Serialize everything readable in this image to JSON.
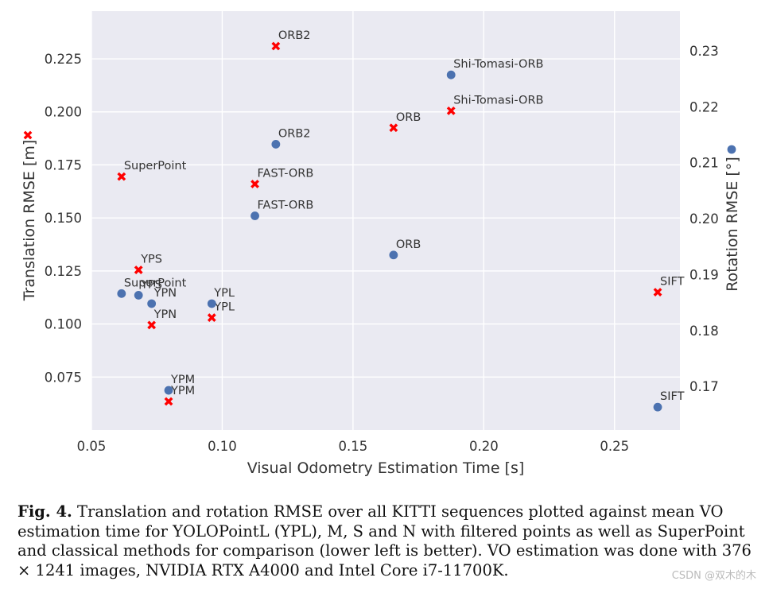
{
  "chart_data": {
    "type": "scatter",
    "xlabel": "Visual Odometry Estimation Time [s]",
    "ylabel_left": "Translation RMSE [m]",
    "ylabel_right": "Rotation RMSE [°]",
    "xlim": [
      0.05,
      0.275
    ],
    "ylim_left": [
      0.05,
      0.2475
    ],
    "ylim_right": [
      0.1622,
      0.2371
    ],
    "xticks": [
      0.05,
      0.1,
      0.15,
      0.2,
      0.25
    ],
    "xtick_labels": [
      "0.05",
      "0.10",
      "0.15",
      "0.20",
      "0.25"
    ],
    "yticks_left": [
      0.075,
      0.1,
      0.125,
      0.15,
      0.175,
      0.2,
      0.225
    ],
    "ytick_labels_left": [
      "0.075",
      "0.100",
      "0.125",
      "0.150",
      "0.175",
      "0.200",
      "0.225"
    ],
    "yticks_right": [
      0.17,
      0.18,
      0.19,
      0.2,
      0.21,
      0.22,
      0.23
    ],
    "ytick_labels_right": [
      "0.17",
      "0.18",
      "0.19",
      "0.20",
      "0.21",
      "0.22",
      "0.23"
    ],
    "grid": true,
    "legend_markers": {
      "left_axis": "red-x",
      "right_axis": "blue-dot"
    },
    "series": [
      {
        "name": "Translation RMSE",
        "axis": "left",
        "marker": "x",
        "color": "#ff0000",
        "points": [
          {
            "label": "ORB2",
            "x": 0.1205,
            "y": 0.231
          },
          {
            "label": "Shi-Tomasi-ORB",
            "x": 0.1875,
            "y": 0.2005
          },
          {
            "label": "ORB",
            "x": 0.1655,
            "y": 0.1925
          },
          {
            "label": "SuperPoint",
            "x": 0.0615,
            "y": 0.1695
          },
          {
            "label": "FAST-ORB",
            "x": 0.1125,
            "y": 0.166
          },
          {
            "label": "YPS",
            "x": 0.068,
            "y": 0.1255
          },
          {
            "label": "SIFT",
            "x": 0.2665,
            "y": 0.115
          },
          {
            "label": "YPL",
            "x": 0.096,
            "y": 0.103
          },
          {
            "label": "YPN",
            "x": 0.073,
            "y": 0.0995
          },
          {
            "label": "YPM",
            "x": 0.0795,
            "y": 0.0635
          }
        ]
      },
      {
        "name": "Rotation RMSE",
        "axis": "right",
        "marker": "circle",
        "color": "#4c72b0",
        "points": [
          {
            "label": "Shi-Tomasi-ORB",
            "x": 0.1875,
            "y": 0.2257
          },
          {
            "label": "ORB2",
            "x": 0.1205,
            "y": 0.2133
          },
          {
            "label": "FAST-ORB",
            "x": 0.1125,
            "y": 0.2005
          },
          {
            "label": "ORB",
            "x": 0.1655,
            "y": 0.1935
          },
          {
            "label": "SuperPoint",
            "x": 0.0615,
            "y": 0.1866
          },
          {
            "label": "YPS",
            "x": 0.068,
            "y": 0.1863
          },
          {
            "label": "YPN",
            "x": 0.073,
            "y": 0.1848
          },
          {
            "label": "YPL",
            "x": 0.096,
            "y": 0.1848
          },
          {
            "label": "YPM",
            "x": 0.0795,
            "y": 0.1693
          },
          {
            "label": "SIFT",
            "x": 0.2665,
            "y": 0.1663
          }
        ]
      }
    ]
  },
  "caption": {
    "fig_label": "Fig. 4.",
    "text": "Translation and rotation RMSE over all KITTI sequences plotted against mean VO estimation time for YOLOPointL (YPL), M, S and N with filtered points as well as SuperPoint and classical methods for comparison (lower left is better). VO estimation was done with 376 × 1241 images, NVIDIA RTX A4000 and Intel Core i7-11700K."
  },
  "watermark": "CSDN @双木的木"
}
